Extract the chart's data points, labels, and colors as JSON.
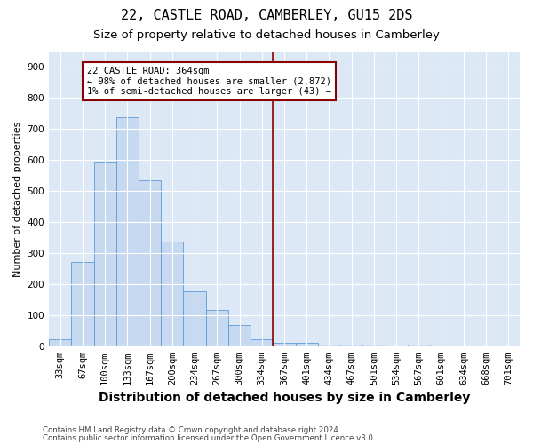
{
  "title": "22, CASTLE ROAD, CAMBERLEY, GU15 2DS",
  "subtitle": "Size of property relative to detached houses in Camberley",
  "xlabel": "Distribution of detached houses by size in Camberley",
  "ylabel": "Number of detached properties",
  "footnote1": "Contains HM Land Registry data © Crown copyright and database right 2024.",
  "footnote2": "Contains public sector information licensed under the Open Government Licence v3.0.",
  "categories": [
    "33sqm",
    "67sqm",
    "100sqm",
    "133sqm",
    "167sqm",
    "200sqm",
    "234sqm",
    "267sqm",
    "300sqm",
    "334sqm",
    "367sqm",
    "401sqm",
    "434sqm",
    "467sqm",
    "501sqm",
    "534sqm",
    "567sqm",
    "601sqm",
    "634sqm",
    "668sqm",
    "701sqm"
  ],
  "values": [
    25,
    272,
    595,
    738,
    535,
    338,
    178,
    118,
    68,
    25,
    12,
    12,
    8,
    6,
    7,
    0,
    8,
    0,
    0,
    0,
    0
  ],
  "bar_color": "#c6d9f1",
  "bar_edge_color": "#5b9bd5",
  "vline_color": "#8b0000",
  "annotation_text": "22 CASTLE ROAD: 364sqm\n← 98% of detached houses are smaller (2,872)\n1% of semi-detached houses are larger (43) →",
  "annotation_box_edgecolor": "#8b0000",
  "annotation_box_facecolor": "white",
  "ylim": [
    0,
    950
  ],
  "yticks": [
    0,
    100,
    200,
    300,
    400,
    500,
    600,
    700,
    800,
    900
  ],
  "plot_bg_color": "#dce8f5",
  "grid_color": "white",
  "title_fontsize": 11,
  "subtitle_fontsize": 9.5,
  "xlabel_fontsize": 10,
  "ylabel_fontsize": 8,
  "tick_fontsize": 7.5,
  "annot_fontsize": 7.5
}
